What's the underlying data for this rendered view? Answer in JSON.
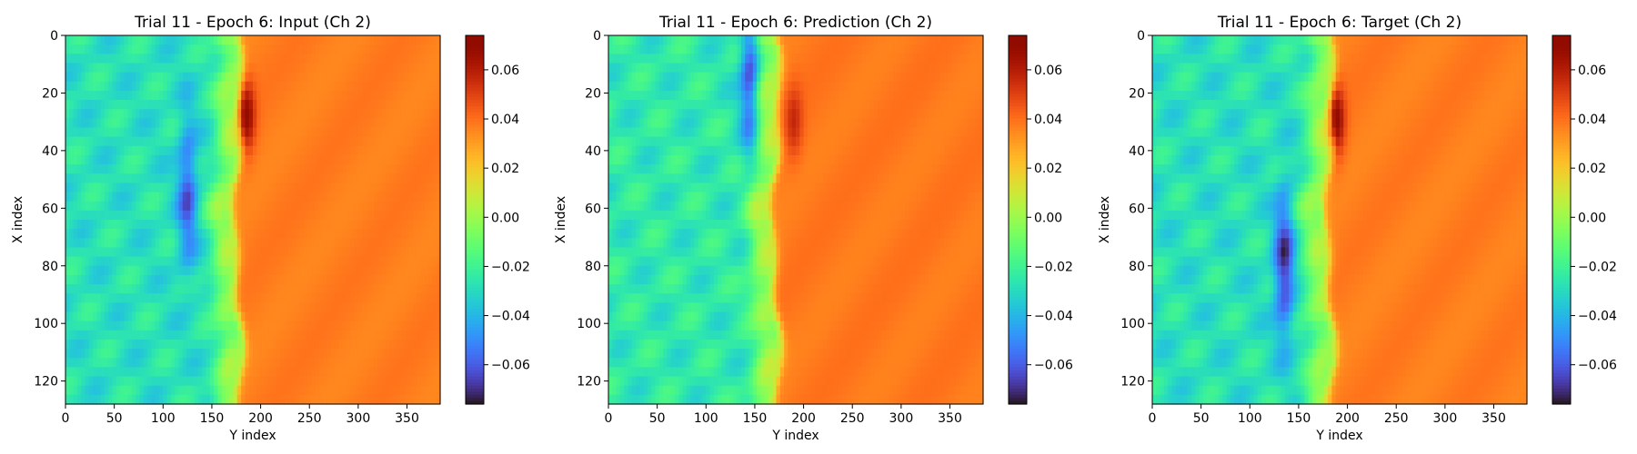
{
  "chart_data": [
    {
      "type": "heatmap",
      "title": "Trial 11 - Epoch 6: Input (Ch 2)",
      "xlabel": "Y index",
      "ylabel": "X index",
      "xlim": [
        0,
        384
      ],
      "ylim": [
        128,
        0
      ],
      "x_ticks": [
        0,
        50,
        100,
        150,
        200,
        250,
        300,
        350
      ],
      "y_ticks": [
        0,
        20,
        40,
        60,
        80,
        100,
        120
      ],
      "colorbar": {
        "colormap": "turbo",
        "min": -0.076,
        "max": 0.074,
        "ticks": [
          "0.06",
          "0.04",
          "0.02",
          "0.00",
          "−0.02",
          "−0.04",
          "−0.06"
        ]
      },
      "description_values": {
        "left_background": -0.028,
        "right_background": 0.037,
        "front_x": 175,
        "blue_feature_center": [
          125,
          55
        ],
        "blue_feature_min": -0.06,
        "red_feature_center": [
          185,
          28
        ],
        "red_feature_max": 0.07
      }
    },
    {
      "type": "heatmap",
      "title": "Trial 11 - Epoch 6: Prediction (Ch 2)",
      "xlabel": "Y index",
      "ylabel": "X index",
      "xlim": [
        0,
        384
      ],
      "ylim": [
        128,
        0
      ],
      "x_ticks": [
        0,
        50,
        100,
        150,
        200,
        250,
        300,
        350
      ],
      "y_ticks": [
        0,
        20,
        40,
        60,
        80,
        100,
        120
      ],
      "colorbar": {
        "colormap": "turbo",
        "min": -0.076,
        "max": 0.074,
        "ticks": [
          "0.06",
          "0.04",
          "0.02",
          "0.00",
          "−0.02",
          "−0.04",
          "−0.06"
        ]
      },
      "description_values": {
        "left_background": -0.025,
        "right_background": 0.038,
        "front_x": 170,
        "blue_feature_center": [
          145,
          15
        ],
        "blue_feature_min": -0.065,
        "red_feature_center": [
          190,
          30
        ],
        "red_feature_max": 0.055
      }
    },
    {
      "type": "heatmap",
      "title": "Trial 11 - Epoch 6: Target (Ch 2)",
      "xlabel": "Y index",
      "ylabel": "X index",
      "xlim": [
        0,
        384
      ],
      "ylim": [
        128,
        0
      ],
      "x_ticks": [
        0,
        50,
        100,
        150,
        200,
        250,
        300,
        350
      ],
      "y_ticks": [
        0,
        20,
        40,
        60,
        80,
        100,
        120
      ],
      "colorbar": {
        "colormap": "turbo",
        "min": -0.076,
        "max": 0.074,
        "ticks": [
          "0.06",
          "0.04",
          "0.02",
          "0.00",
          "−0.02",
          "−0.04",
          "−0.06"
        ]
      },
      "description_values": {
        "left_background": -0.028,
        "right_background": 0.037,
        "front_x": 180,
        "blue_feature_center": [
          135,
          80
        ],
        "blue_feature_min": -0.068,
        "red_feature_center": [
          188,
          30
        ],
        "red_feature_max": 0.072
      }
    }
  ]
}
